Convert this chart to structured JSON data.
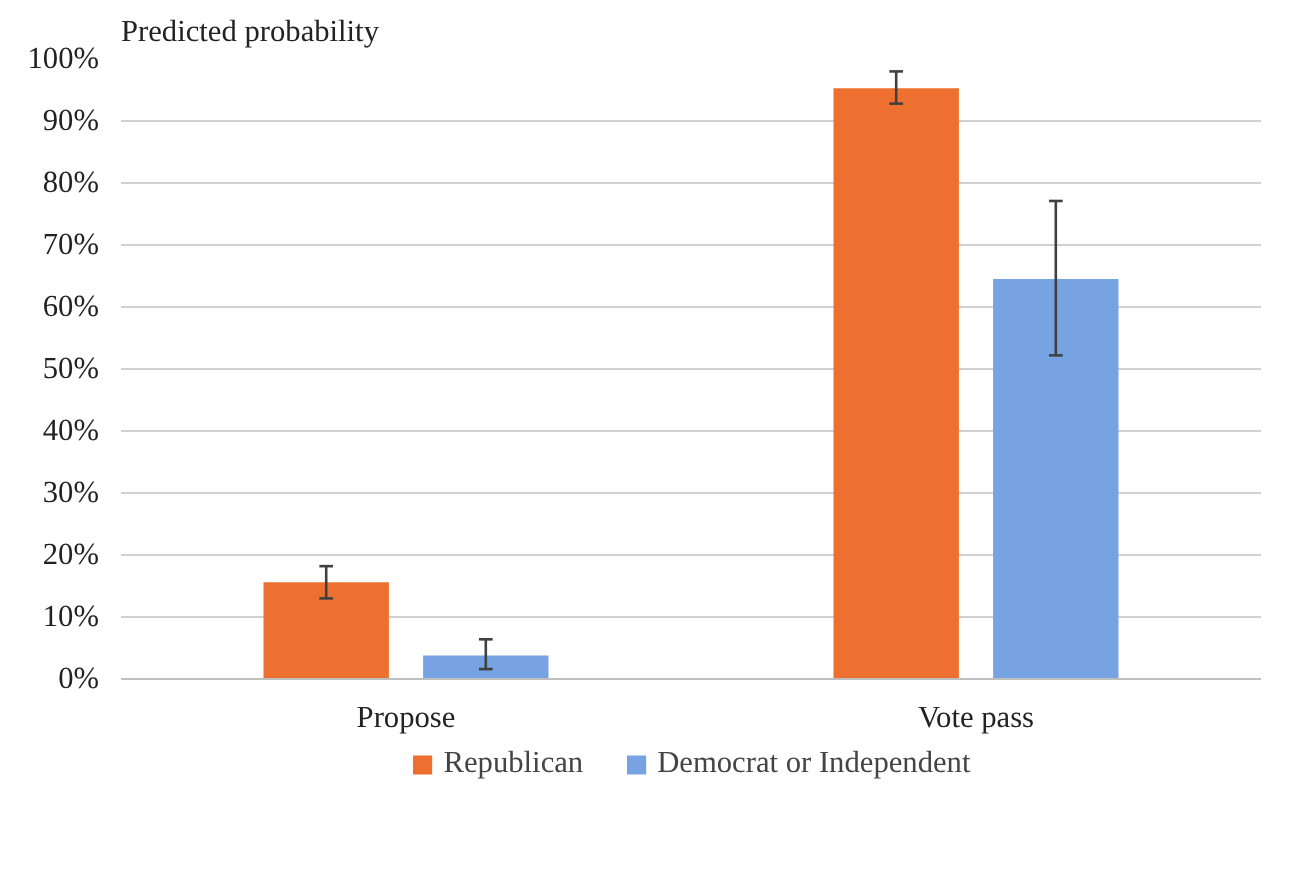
{
  "chart_data": {
    "type": "bar",
    "ylabel": "Predicted probability",
    "categories": [
      "Propose",
      "Vote pass"
    ],
    "series": [
      {
        "name": "Republican",
        "color": "#ed7030",
        "values": [
          15.6,
          95.3
        ],
        "errors": [
          [
            13.0,
            18.2
          ],
          [
            92.8,
            98.0
          ]
        ]
      },
      {
        "name": "Democrat or Independent",
        "color": "#77a3e2",
        "values": [
          3.8,
          64.5
        ],
        "errors": [
          [
            1.6,
            6.4
          ],
          [
            52.2,
            77.1
          ]
        ]
      }
    ],
    "ylim": [
      0,
      100
    ],
    "yticks": [
      {
        "value": 0,
        "label": "0%"
      },
      {
        "value": 10,
        "label": "10%"
      },
      {
        "value": 20,
        "label": "20%"
      },
      {
        "value": 30,
        "label": "30%"
      },
      {
        "value": 40,
        "label": "40%"
      },
      {
        "value": 50,
        "label": "50%"
      },
      {
        "value": 60,
        "label": "60%"
      },
      {
        "value": 70,
        "label": "70%"
      },
      {
        "value": 80,
        "label": "80%"
      },
      {
        "value": 90,
        "label": "90%"
      },
      {
        "value": 100,
        "label": "100%"
      }
    ],
    "grid": "y",
    "legend": "bottom"
  }
}
